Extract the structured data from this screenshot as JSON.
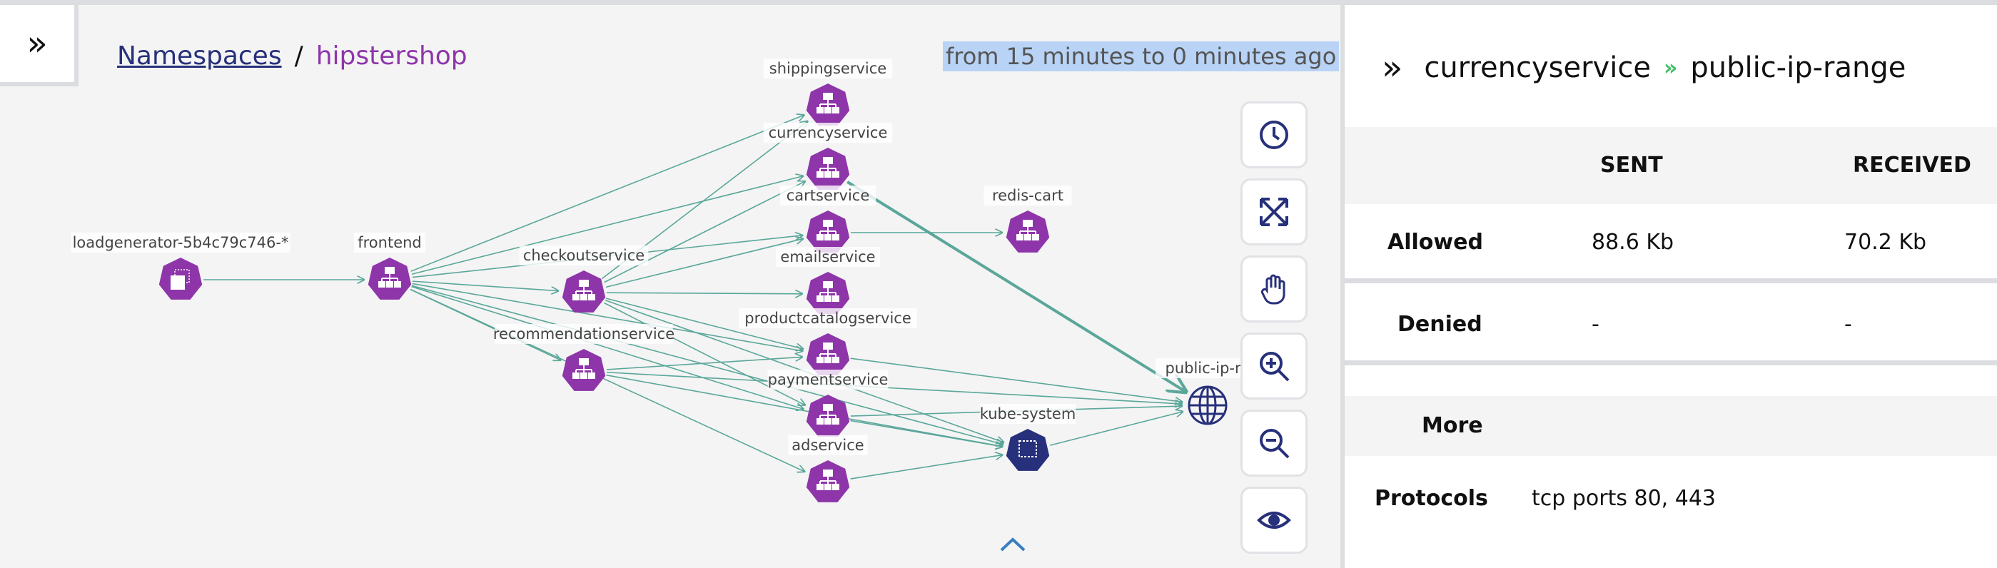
{
  "breadcrumb": {
    "root": "Namespaces",
    "separator": "/",
    "current": "hipstershop"
  },
  "time_range": "from 15 minutes to 0 minutes ago",
  "colors": {
    "service": "#8e35aa",
    "namespace": "#27307a",
    "edge": "#5aa79a",
    "accent": "#44c06a"
  },
  "graph": {
    "nodes": [
      {
        "id": "loadgenerator",
        "label": "loadgenerator-5b4c79c746-*",
        "kind": "deployment"
      },
      {
        "id": "frontend",
        "label": "frontend",
        "kind": "svc"
      },
      {
        "id": "checkoutservice",
        "label": "checkoutservice",
        "kind": "svc"
      },
      {
        "id": "recommendationservice",
        "label": "recommendationservice",
        "kind": "svc"
      },
      {
        "id": "shippingservice",
        "label": "shippingservice",
        "kind": "svc"
      },
      {
        "id": "currencyservice",
        "label": "currencyservice",
        "kind": "svc"
      },
      {
        "id": "cartservice",
        "label": "cartservice",
        "kind": "svc"
      },
      {
        "id": "emailservice",
        "label": "emailservice",
        "kind": "svc"
      },
      {
        "id": "productcatalogservice",
        "label": "productcatalogservice",
        "kind": "svc"
      },
      {
        "id": "paymentservice",
        "label": "paymentservice",
        "kind": "svc"
      },
      {
        "id": "adservice",
        "label": "adservice",
        "kind": "svc"
      },
      {
        "id": "redis-cart",
        "label": "redis-cart",
        "kind": "svc"
      },
      {
        "id": "kube-system",
        "label": "kube-system",
        "kind": "ns"
      },
      {
        "id": "public-ip-range",
        "label": "public-ip-ra",
        "kind": "globe"
      }
    ],
    "edges": [
      [
        "loadgenerator",
        "frontend"
      ],
      [
        "frontend",
        "shippingservice"
      ],
      [
        "frontend",
        "currencyservice"
      ],
      [
        "frontend",
        "cartservice"
      ],
      [
        "frontend",
        "checkoutservice"
      ],
      [
        "frontend",
        "productcatalogservice"
      ],
      [
        "frontend",
        "recommendationservice"
      ],
      [
        "frontend",
        "adservice"
      ],
      [
        "frontend",
        "kube-system"
      ],
      [
        "frontend",
        "paymentservice"
      ],
      [
        "checkoutservice",
        "shippingservice"
      ],
      [
        "checkoutservice",
        "currencyservice"
      ],
      [
        "checkoutservice",
        "cartservice"
      ],
      [
        "checkoutservice",
        "emailservice"
      ],
      [
        "checkoutservice",
        "productcatalogservice"
      ],
      [
        "checkoutservice",
        "paymentservice"
      ],
      [
        "checkoutservice",
        "kube-system"
      ],
      [
        "recommendationservice",
        "productcatalogservice"
      ],
      [
        "recommendationservice",
        "public-ip-range"
      ],
      [
        "recommendationservice",
        "kube-system"
      ],
      [
        "cartservice",
        "redis-cart"
      ],
      [
        "currencyservice",
        "public-ip-range"
      ],
      [
        "productcatalogservice",
        "public-ip-range"
      ],
      [
        "paymentservice",
        "public-ip-range"
      ],
      [
        "paymentservice",
        "kube-system"
      ],
      [
        "adservice",
        "kube-system"
      ],
      [
        "kube-system",
        "public-ip-range"
      ]
    ],
    "highlighted_edge": [
      "currencyservice",
      "public-ip-range"
    ]
  },
  "controls": [
    {
      "name": "time-range",
      "icon": "clock-icon"
    },
    {
      "name": "fit-view",
      "icon": "expand-arrows-icon"
    },
    {
      "name": "pan",
      "icon": "hand-icon"
    },
    {
      "name": "zoom-in",
      "icon": "zoom-in-icon"
    },
    {
      "name": "zoom-out",
      "icon": "zoom-out-icon"
    },
    {
      "name": "visibility",
      "icon": "eye-icon"
    }
  ],
  "panel": {
    "source": "currencyservice",
    "arrow": "»",
    "target": "public-ip-range",
    "columns": [
      "SENT",
      "RECEIVED"
    ],
    "rows": [
      {
        "label": "Allowed",
        "sent": "88.6 Kb",
        "received": "70.2 Kb"
      },
      {
        "label": "Denied",
        "sent": "-",
        "received": "-"
      }
    ],
    "more_label": "More",
    "protocols_label": "Protocols",
    "protocols_value": "tcp ports 80, 443"
  }
}
